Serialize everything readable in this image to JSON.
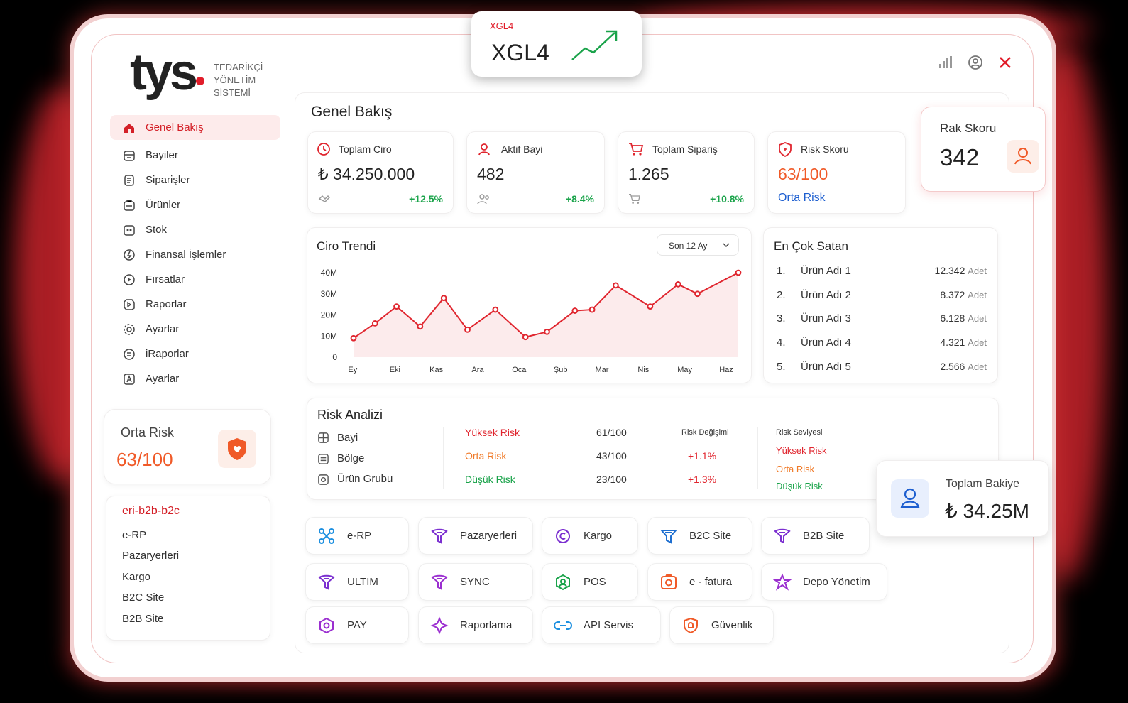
{
  "brand": {
    "logo": "tys",
    "subtitle": [
      "TEDARİKÇİ",
      "YÖNETİM",
      "SİSTEMİ"
    ]
  },
  "ticker": {
    "small": "XGL4",
    "big": "XGL4",
    "trend_color": "#1aa34a"
  },
  "sidebar": {
    "items": [
      {
        "label": "Genel Bakış",
        "icon": "home-icon",
        "active": true
      },
      {
        "label": "Bayiler",
        "icon": "store-icon"
      },
      {
        "label": "Siparişler",
        "icon": "orders-icon"
      },
      {
        "label": "Ürünler",
        "icon": "products-icon"
      },
      {
        "label": "Stok",
        "icon": "stock-icon"
      },
      {
        "label": "Finansal İşlemler",
        "icon": "finance-icon"
      },
      {
        "label": "Fırsatlar",
        "icon": "opportunity-icon"
      },
      {
        "label": "Raporlar",
        "icon": "reports-icon"
      },
      {
        "label": "Ayarlar",
        "icon": "settings-icon"
      },
      {
        "label": "iRaporlar",
        "icon": "ireports-icon"
      },
      {
        "label": "Ayarlar",
        "icon": "settings-alt-icon"
      }
    ],
    "risk": {
      "title": "Orta Risk",
      "value": "63/100"
    },
    "channels": {
      "title": "eri-b2b-b2c",
      "items": [
        "e-RP",
        "Pazaryerleri",
        "Kargo",
        "B2C Site",
        "B2B Site"
      ]
    }
  },
  "main": {
    "title": "Genel Bakış",
    "kpis": [
      {
        "label": "Toplam Ciro",
        "value": "₺ 34.250.000",
        "delta": "+12.5%",
        "icon": "revenue-icon"
      },
      {
        "label": "Aktif Bayi",
        "value": "482",
        "delta": "+8.4%",
        "icon": "dealer-icon"
      },
      {
        "label": "Toplam Sipariş",
        "value": "1.265",
        "delta": "+10.8%",
        "icon": "cart-icon"
      },
      {
        "label": "Risk Skoru",
        "value": "63/100",
        "note": "Orta Risk",
        "icon": "shield-icon"
      }
    ],
    "rak": {
      "label": "Rak Skoru",
      "value": "342"
    },
    "balance": {
      "label": "Toplam Bakiye",
      "value": "₺ 34.25M"
    },
    "top_sellers": {
      "title": "En Çok Satan",
      "unit": "Adet",
      "rows": [
        {
          "rank": "1.",
          "name": "Ürün Adı 1",
          "count": "12.342"
        },
        {
          "rank": "2.",
          "name": "Ürün Adı 2",
          "count": "8.372"
        },
        {
          "rank": "3.",
          "name": "Ürün Adı 3",
          "count": "6.128"
        },
        {
          "rank": "4.",
          "name": "Ürün Adı 4",
          "count": "4.321"
        },
        {
          "rank": "5.",
          "name": "Ürün Adı 5",
          "count": "2.566"
        }
      ]
    },
    "risk_analysis": {
      "title": "Risk Analizi",
      "rows": [
        {
          "label": "Bayi",
          "level": "Yüksek Risk",
          "score": "61/100"
        },
        {
          "label": "Bölge",
          "level": "Orta Risk",
          "score": "43/100"
        },
        {
          "label": "Ürün Grubu",
          "level": "Düşük Risk",
          "score": "23/100"
        }
      ],
      "change_title": "Risk Değişimi",
      "changes": [
        "+1.1%",
        "+1.3%"
      ],
      "level_title": "Risk Seviyesi",
      "levels": [
        "Yüksek Risk",
        "Orta Risk",
        "Düşük Risk"
      ]
    },
    "apps": [
      {
        "label": "e-RP",
        "icon": "drone-icon",
        "color": "#1e90e0"
      },
      {
        "label": "Pazaryerleri",
        "icon": "funnel-icon",
        "color": "#7b2fd0"
      },
      {
        "label": "Kargo",
        "icon": "cargo-icon",
        "color": "#7b2fd0"
      },
      {
        "label": "B2C Site",
        "icon": "b2c-icon",
        "color": "#1e6fd0"
      },
      {
        "label": "B2B Site",
        "icon": "b2b-icon",
        "color": "#7b2fd0"
      },
      {
        "label": "ULTIM",
        "icon": "ultim-icon",
        "color": "#7b2fd0"
      },
      {
        "label": "SYNC",
        "icon": "sync-icon",
        "color": "#9b2fd0"
      },
      {
        "label": "POS",
        "icon": "pos-icon",
        "color": "#1aa34a"
      },
      {
        "label": "e - fatura",
        "icon": "invoice-icon",
        "color": "#f05a28"
      },
      {
        "label": "Depo Yönetim",
        "icon": "warehouse-icon",
        "color": "#9b2fd0"
      },
      {
        "label": "PAY",
        "icon": "pay-icon",
        "color": "#9b2fd0"
      },
      {
        "label": "Raporlama",
        "icon": "reporting-icon",
        "color": "#9b2fd0"
      },
      {
        "label": "API Servis",
        "icon": "api-icon",
        "color": "#1e90e0"
      },
      {
        "label": "Güvenlik",
        "icon": "security-icon",
        "color": "#f05a28"
      }
    ]
  },
  "chart_data": {
    "type": "line",
    "title": "Ciro Trendi",
    "period_select": "Son 12 Ay",
    "categories": [
      "Eyl",
      "Eki",
      "Kas",
      "Ara",
      "Oca",
      "Şub",
      "Mar",
      "Nis",
      "May",
      "Haz"
    ],
    "y_ticks": [
      "40M",
      "30M",
      "20M",
      "10M",
      "0"
    ],
    "ylim": [
      0,
      40
    ],
    "points": [
      {
        "x": 0.0,
        "y": 9
      },
      {
        "x": 0.5,
        "y": 16
      },
      {
        "x": 1.0,
        "y": 24
      },
      {
        "x": 1.55,
        "y": 14.5
      },
      {
        "x": 2.1,
        "y": 28
      },
      {
        "x": 2.65,
        "y": 13
      },
      {
        "x": 3.3,
        "y": 22.5
      },
      {
        "x": 4.0,
        "y": 9.5
      },
      {
        "x": 4.5,
        "y": 12
      },
      {
        "x": 5.15,
        "y": 22
      },
      {
        "x": 5.55,
        "y": 22.5
      },
      {
        "x": 6.1,
        "y": 34
      },
      {
        "x": 6.9,
        "y": 24
      },
      {
        "x": 7.55,
        "y": 34.5
      },
      {
        "x": 8.0,
        "y": 30
      },
      {
        "x": 8.95,
        "y": 40
      }
    ],
    "color": "#e0262f",
    "grid": false
  }
}
